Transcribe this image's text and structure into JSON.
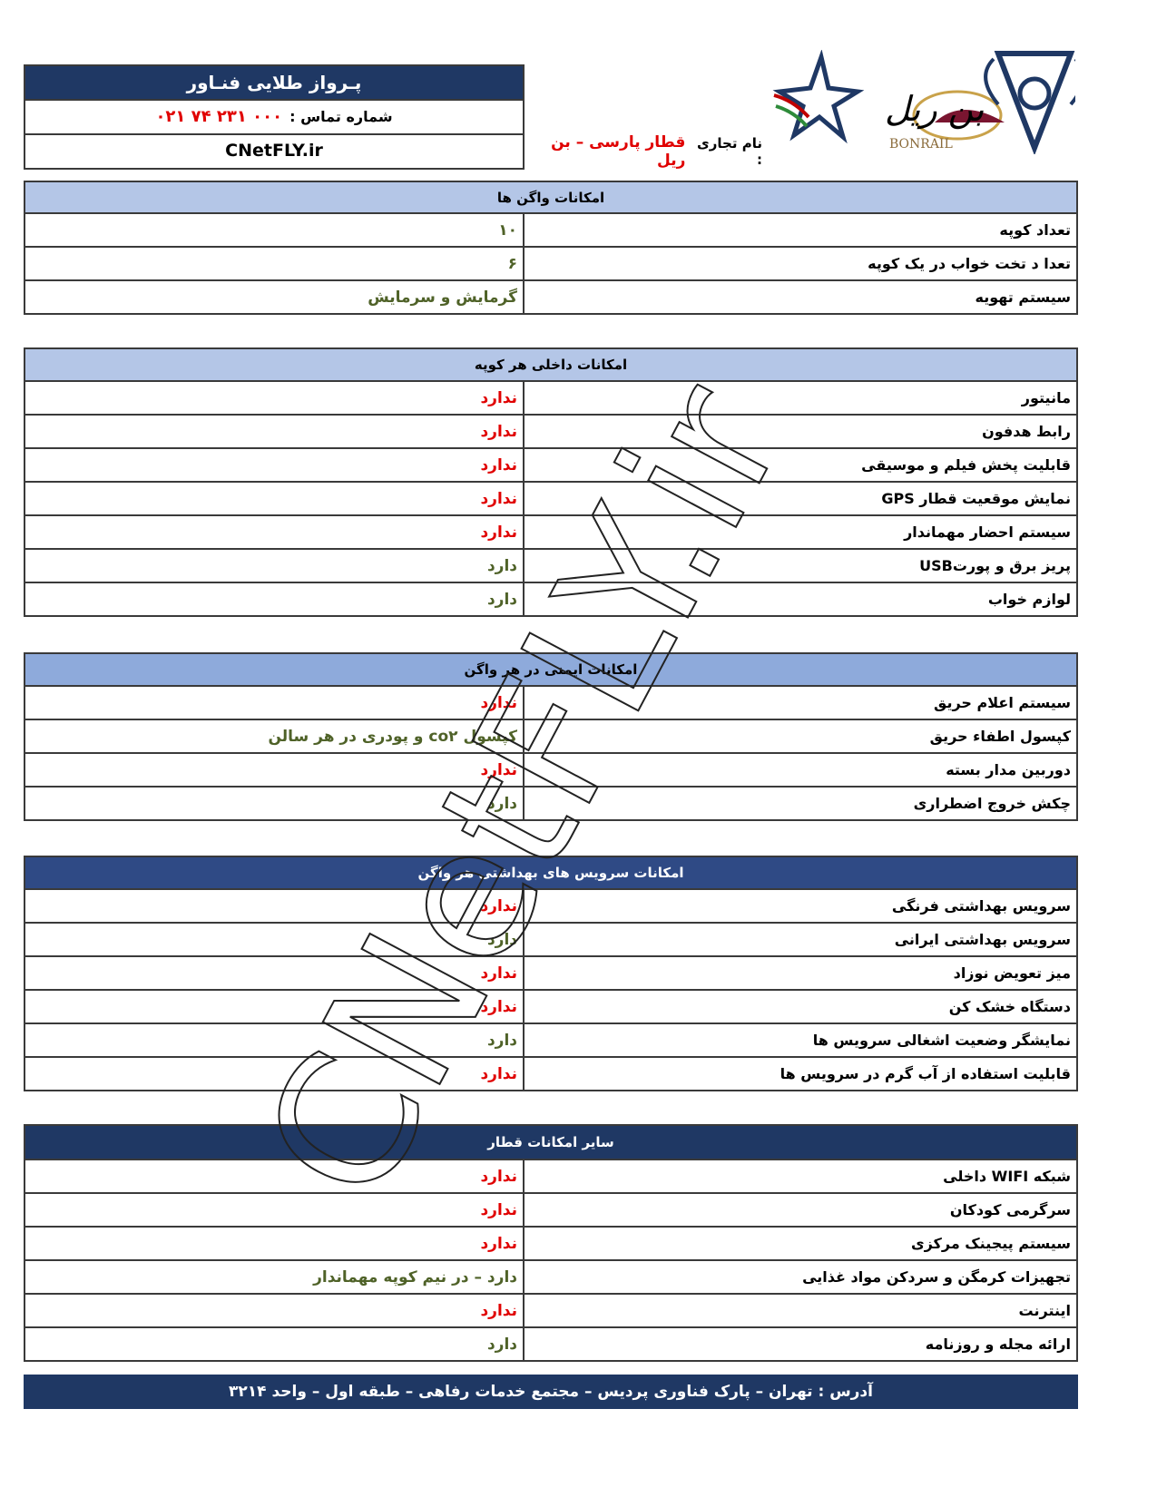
{
  "header": {
    "company": "پـرواز طلایی فنـاور",
    "phone_label": "شماره تماس :",
    "phone": "۰۲۱ ۷۴ ۲۳۱ ۰۰۰",
    "website": "CNetFLY.ir",
    "brand_label": "نام تجاری :",
    "brand_name": "قطار پارسی – بن ریل",
    "logo_text": "بن ریل",
    "logo_latin": "BONRAIL"
  },
  "sections": [
    {
      "title": "امکانات واگن ها",
      "header_color": "#b4c6e7",
      "header_text_color": "#000000",
      "rows": [
        {
          "label": "تعداد کوپه",
          "value": "۱۰",
          "color": "#4f6228"
        },
        {
          "label": "تعدا د تخت خواب در یک کوپه",
          "value": "۶",
          "color": "#4f6228"
        },
        {
          "label": "سیستم تهویه",
          "value": "گرمایش و سرمایش",
          "color": "#4f6228"
        }
      ]
    },
    {
      "title": "امکانات داخلی هر کوپه",
      "header_color": "#b4c6e7",
      "header_text_color": "#000000",
      "rows": [
        {
          "label": "مانیتور",
          "value": "ندارد",
          "color": "#e00000"
        },
        {
          "label": "رابط هدفون",
          "value": "ندارد",
          "color": "#e00000"
        },
        {
          "label": "قابلیت پخش فیلم و موسیقی",
          "value": "ندارد",
          "color": "#e00000"
        },
        {
          "label": "نمایش موقعیت قطار GPS",
          "value": "ندارد",
          "color": "#e00000"
        },
        {
          "label": "سیستم احضار مهماندار",
          "value": "ندارد",
          "color": "#e00000"
        },
        {
          "label": "پریز برق و پورتUSB",
          "value": "دارد",
          "color": "#4f6228"
        },
        {
          "label": "لوازم خواب",
          "value": "دارد",
          "color": "#4f6228"
        }
      ]
    },
    {
      "title": "امکانات ایمنی در هر واگن",
      "header_color": "#8eaadb",
      "header_text_color": "#000000",
      "rows": [
        {
          "label": "سیستم اعلام حریق",
          "value": "ندارد",
          "color": "#e00000"
        },
        {
          "label": "کپسول اطفاء حریق",
          "value": "کپسول co۲ و پودری در هر سالن",
          "color": "#4f6228"
        },
        {
          "label": "دوربین مدار بسته",
          "value": "ندارد",
          "color": "#e00000"
        },
        {
          "label": "چکش خروج اضطراری",
          "value": "دارد",
          "color": "#4f6228"
        }
      ]
    },
    {
      "title": "امکانات سرویس های بهداشتی هر واگن",
      "header_color": "#2f4a85",
      "header_text_color": "#ffffff",
      "rows": [
        {
          "label": "سرویس بهداشتی فرنگی",
          "value": "ندارد",
          "color": "#e00000"
        },
        {
          "label": "سرویس بهداشتی ایرانی",
          "value": "دارد",
          "color": "#4f6228"
        },
        {
          "label": "میز تعویض نوزاد",
          "value": "ندارد",
          "color": "#e00000"
        },
        {
          "label": "دستگاه خشک کن",
          "value": "ندارد",
          "color": "#e00000"
        },
        {
          "label": "نمایشگر وضعیت اشغالی سرویس ها",
          "value": "دارد",
          "color": "#4f6228"
        },
        {
          "label": "قابلیت استفاده از آب گرم در سرویس ها",
          "value": "ندارد",
          "color": "#e00000"
        }
      ]
    },
    {
      "title": "سایر امکانات قطار",
      "header_color": "#1f3864",
      "header_text_color": "#ffffff",
      "rows": [
        {
          "label": "شبکه WIFI داخلی",
          "value": "ندارد",
          "color": "#e00000"
        },
        {
          "label": "سرگرمی کودکان",
          "value": "ندارد",
          "color": "#e00000"
        },
        {
          "label": "سیستم پیجینک مرکزی",
          "value": "ندارد",
          "color": "#e00000"
        },
        {
          "label": "تجهیزات کرمگن و سردکن مواد غذایی",
          "value": "دارد – در نیم کوپه مهماندار",
          "color": "#4f6228"
        },
        {
          "label": "اینترنت",
          "value": "ندارد",
          "color": "#e00000"
        },
        {
          "label": "ارائه مجله و روزنامه",
          "value": "دارد",
          "color": "#4f6228"
        }
      ]
    }
  ],
  "footer": {
    "address": "آدرس : تهران – پارک فناوری پردیس – مجتمع خدمات رفاهی – طبقه اول – واحد ۳۲۱۴"
  },
  "watermark": "CNetFLY.ir"
}
